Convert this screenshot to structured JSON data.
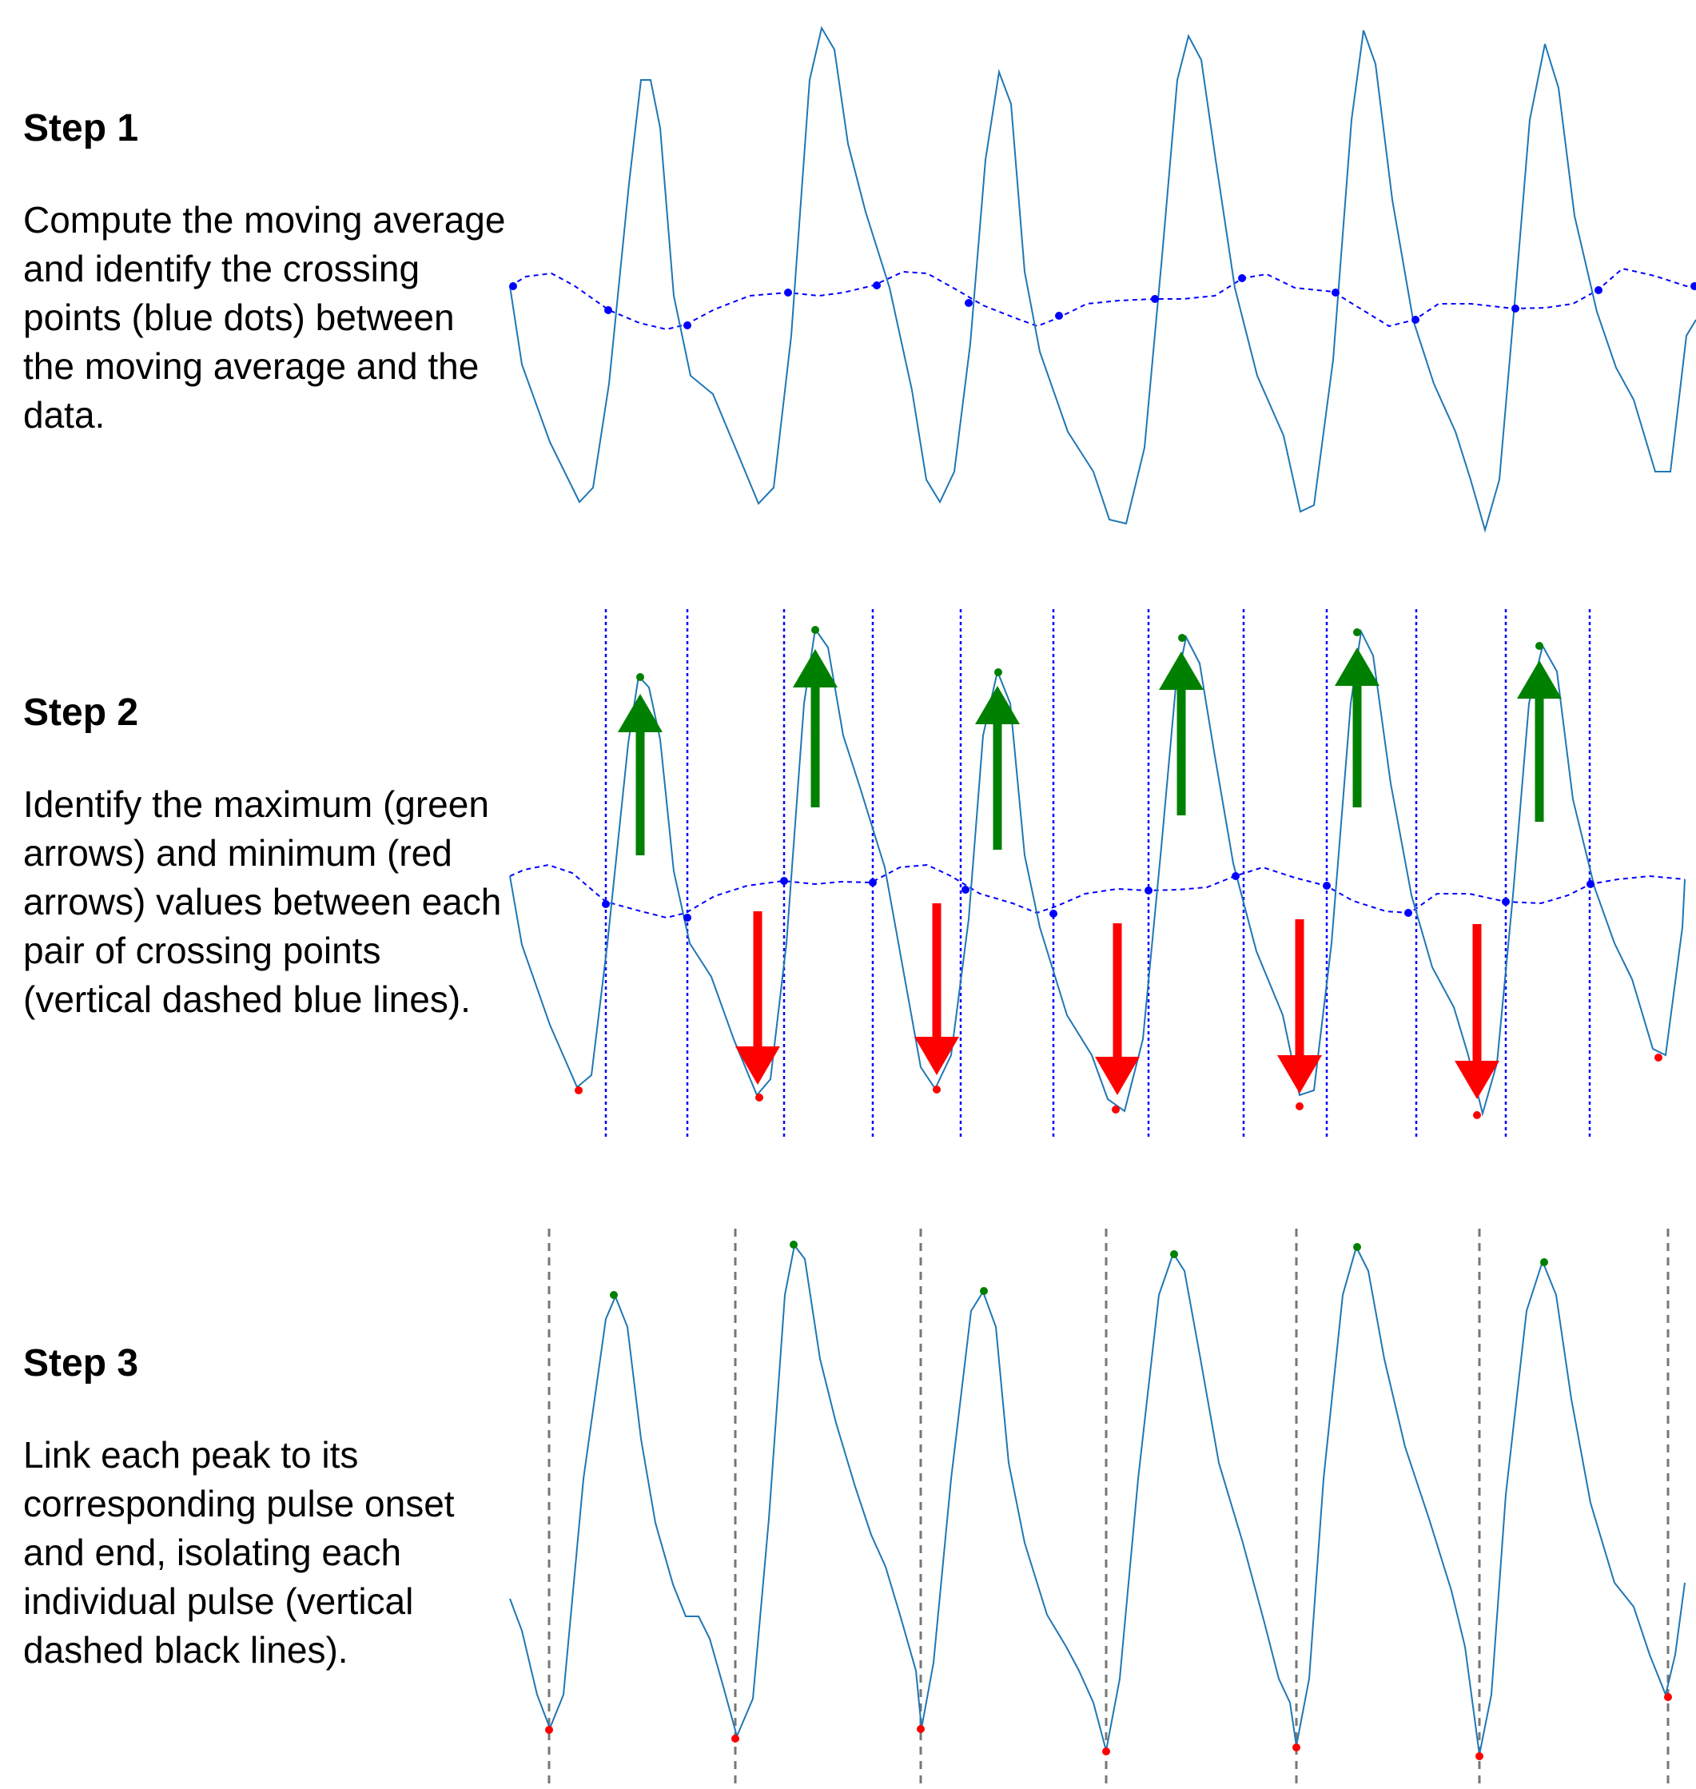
{
  "steps": [
    {
      "title": "Step 1",
      "description": "Compute the moving average and identify the crossing points (blue dots) between the moving average and the data."
    },
    {
      "title": "Step 2",
      "description": "Identify the maximum (green arrows) and minimum (red arrows) values between each pair of crossing points (vertical dashed blue lines)."
    },
    {
      "title": "Step 3",
      "description": "Link each peak to its corresponding pulse onset and end, isolating each individual pulse (vertical dashed black lines)."
    }
  ],
  "colors": {
    "signal": "#1f77b4",
    "moving_average": "#0000ff",
    "maximum": "#008000",
    "minimum": "#ff0000",
    "pulse_boundary": "#777777"
  }
}
